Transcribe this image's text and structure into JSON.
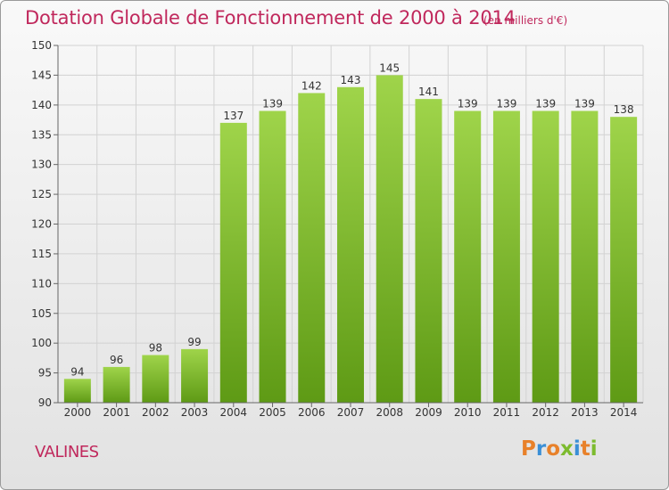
{
  "chart_data": {
    "type": "bar",
    "title": "Dotation Globale de Fonctionnement de 2000 à 2014",
    "unit_note": "(en milliers d'€)",
    "categories": [
      "2000",
      "2001",
      "2002",
      "2003",
      "2004",
      "2005",
      "2006",
      "2007",
      "2008",
      "2009",
      "2010",
      "2011",
      "2012",
      "2013",
      "2014"
    ],
    "values": [
      94,
      96,
      98,
      99,
      137,
      139,
      142,
      143,
      145,
      141,
      139,
      139,
      139,
      139,
      138
    ],
    "ylim": [
      90,
      150
    ],
    "yticks": [
      90,
      95,
      100,
      105,
      110,
      115,
      120,
      125,
      130,
      135,
      140,
      145,
      150
    ],
    "grid": true,
    "bar_color": "#7cbb2e"
  },
  "footer": {
    "place": "VALINES",
    "logo": "Proxiti",
    "logo_colors": [
      "#e8812a",
      "#3a8fd6",
      "#e8812a",
      "#7cbb2e",
      "#3a8fd6",
      "#e8812a",
      "#7cbb2e"
    ]
  }
}
